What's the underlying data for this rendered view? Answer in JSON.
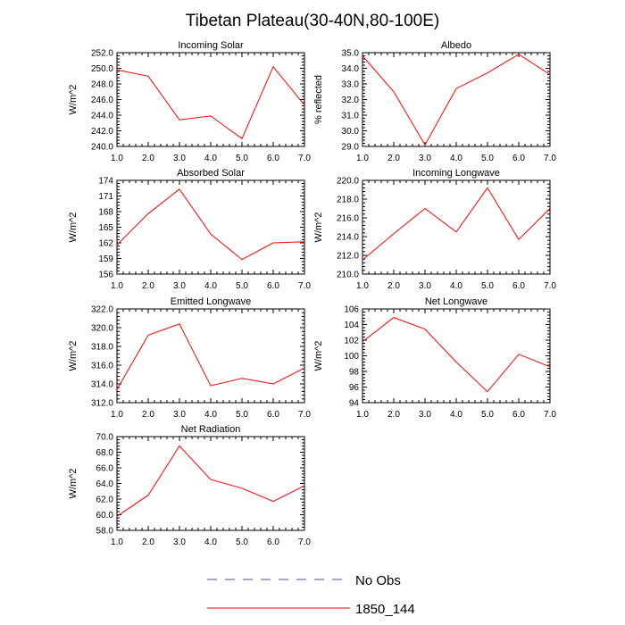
{
  "title": "Tibetan Plateau(30-40N,80-100E)",
  "colors": {
    "model": "#ff0000",
    "obs": "#4b4bb4",
    "axes": "#000000"
  },
  "legend": [
    {
      "label": "No Obs",
      "style": "dashed",
      "color": "#4b4bb4"
    },
    {
      "label": "1850_144",
      "style": "solid",
      "color": "#ff0000"
    }
  ],
  "chart_data": [
    {
      "type": "line",
      "title": "Incoming Solar",
      "ylabel": "W/m^2",
      "x": [
        1,
        2,
        3,
        4,
        5,
        6,
        7
      ],
      "xlim": [
        1,
        7
      ],
      "xticks": [
        "1.0",
        "2.0",
        "3.0",
        "4.0",
        "5.0",
        "6.0",
        "7.0"
      ],
      "ylim": [
        240,
        252
      ],
      "yticks": [
        240,
        242,
        244,
        246,
        248,
        250,
        252
      ],
      "ytick_labels": [
        "240.0",
        "242.0",
        "244.0",
        "246.0",
        "248.0",
        "250.0",
        "252.0"
      ],
      "series": [
        {
          "name": "1850_144",
          "values": [
            249.8,
            249.0,
            243.4,
            243.9,
            241.0,
            250.2,
            245.3
          ]
        }
      ]
    },
    {
      "type": "line",
      "title": "Albedo",
      "ylabel": "% reflected",
      "x": [
        1,
        2,
        3,
        4,
        5,
        6,
        7
      ],
      "xlim": [
        1,
        7
      ],
      "xticks": [
        "1.0",
        "2.0",
        "3.0",
        "4.0",
        "5.0",
        "6.0",
        "7.0"
      ],
      "ylim": [
        29,
        35
      ],
      "yticks": [
        29,
        30,
        31,
        32,
        33,
        34,
        35
      ],
      "ytick_labels": [
        "29.0",
        "30.0",
        "31.0",
        "32.0",
        "33.0",
        "34.0",
        "35.0"
      ],
      "series": [
        {
          "name": "1850_144",
          "values": [
            34.8,
            32.5,
            29.1,
            32.7,
            33.7,
            34.9,
            33.6
          ]
        }
      ]
    },
    {
      "type": "line",
      "title": "Absorbed Solar",
      "ylabel": "W/m^2",
      "x": [
        1,
        2,
        3,
        4,
        5,
        6,
        7
      ],
      "xlim": [
        1,
        7
      ],
      "xticks": [
        "1.0",
        "2.0",
        "3.0",
        "4.0",
        "5.0",
        "6.0",
        "7.0"
      ],
      "ylim": [
        156,
        174
      ],
      "yticks": [
        156,
        159,
        162,
        165,
        168,
        171,
        174
      ],
      "ytick_labels": [
        "156",
        "159",
        "162",
        "165",
        "168",
        "171",
        "174"
      ],
      "series": [
        {
          "name": "1850_144",
          "values": [
            161.6,
            167.6,
            172.3,
            163.7,
            158.8,
            162.0,
            162.2
          ]
        }
      ]
    },
    {
      "type": "line",
      "title": "Incoming Longwave",
      "ylabel": "W/m^2",
      "x": [
        1,
        2,
        3,
        4,
        5,
        6,
        7
      ],
      "xlim": [
        1,
        7
      ],
      "xticks": [
        "1.0",
        "2.0",
        "3.0",
        "4.0",
        "5.0",
        "6.0",
        "7.0"
      ],
      "ylim": [
        210,
        220
      ],
      "yticks": [
        210,
        212,
        214,
        216,
        218,
        220
      ],
      "ytick_labels": [
        "210.0",
        "212.0",
        "214.0",
        "216.0",
        "218.0",
        "220.0"
      ],
      "series": [
        {
          "name": "1850_144",
          "values": [
            211.5,
            214.3,
            217.0,
            214.5,
            219.2,
            213.7,
            217.0
          ]
        }
      ]
    },
    {
      "type": "line",
      "title": "Emitted Longwave",
      "ylabel": "W/m^2",
      "x": [
        1,
        2,
        3,
        4,
        5,
        6,
        7
      ],
      "xlim": [
        1,
        7
      ],
      "xticks": [
        "1.0",
        "2.0",
        "3.0",
        "4.0",
        "5.0",
        "6.0",
        "7.0"
      ],
      "ylim": [
        312,
        322
      ],
      "yticks": [
        312,
        314,
        316,
        318,
        320,
        322
      ],
      "ytick_labels": [
        "312.0",
        "314.0",
        "316.0",
        "318.0",
        "320.0",
        "322.0"
      ],
      "series": [
        {
          "name": "1850_144",
          "values": [
            313.4,
            319.2,
            320.4,
            313.8,
            314.6,
            314.0,
            315.7
          ]
        }
      ]
    },
    {
      "type": "line",
      "title": "Net Longwave",
      "ylabel": "W/m^2",
      "x": [
        1,
        2,
        3,
        4,
        5,
        6,
        7
      ],
      "xlim": [
        1,
        7
      ],
      "xticks": [
        "1.0",
        "2.0",
        "3.0",
        "4.0",
        "5.0",
        "6.0",
        "7.0"
      ],
      "ylim": [
        94,
        106
      ],
      "yticks": [
        94,
        96,
        98,
        100,
        102,
        104,
        106
      ],
      "ytick_labels": [
        "94",
        "96",
        "98",
        "100",
        "102",
        "104",
        "106"
      ],
      "series": [
        {
          "name": "1850_144",
          "values": [
            101.8,
            104.9,
            103.4,
            99.2,
            95.4,
            100.2,
            98.6
          ]
        }
      ]
    },
    {
      "type": "line",
      "title": "Net Radiation",
      "ylabel": "W/m^2",
      "x": [
        1,
        2,
        3,
        4,
        5,
        6,
        7
      ],
      "xlim": [
        1,
        7
      ],
      "xticks": [
        "1.0",
        "2.0",
        "3.0",
        "4.0",
        "5.0",
        "6.0",
        "7.0"
      ],
      "ylim": [
        58,
        70
      ],
      "yticks": [
        58,
        60,
        62,
        64,
        66,
        68,
        70
      ],
      "ytick_labels": [
        "58.0",
        "60.0",
        "62.0",
        "64.0",
        "66.0",
        "68.0",
        "70.0"
      ],
      "series": [
        {
          "name": "1850_144",
          "values": [
            59.8,
            62.5,
            68.8,
            64.5,
            63.4,
            61.7,
            63.7
          ]
        }
      ]
    }
  ]
}
